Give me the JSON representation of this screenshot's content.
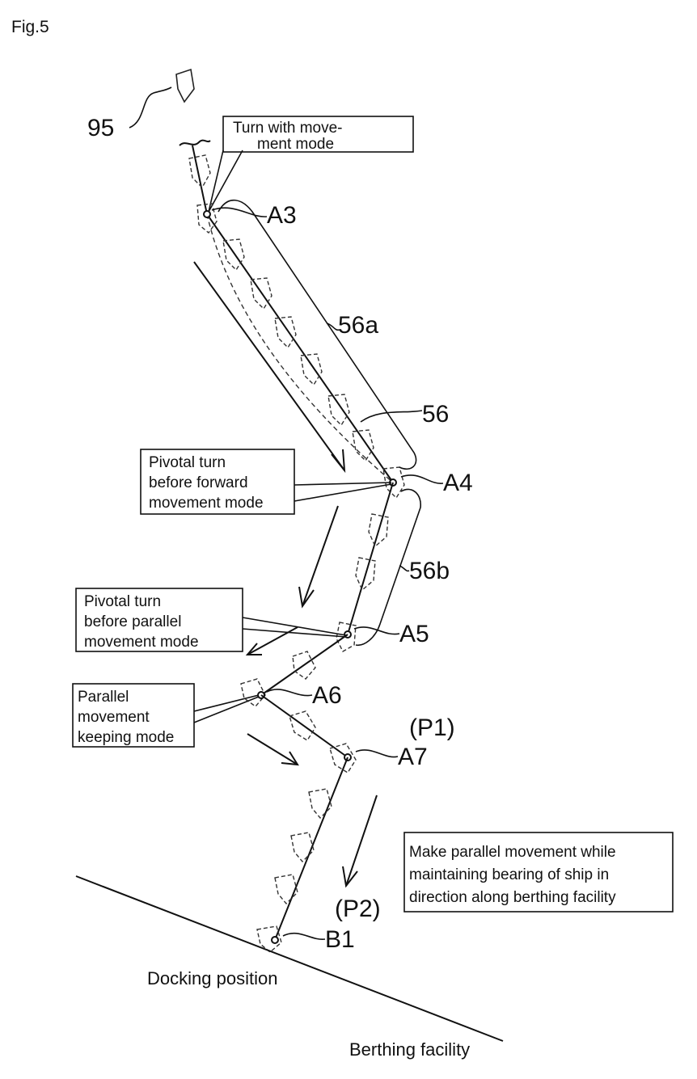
{
  "figure": {
    "title": "Fig.5",
    "labels": {
      "ref_95": "95",
      "ref_56a": "56a",
      "ref_56": "56",
      "ref_56b": "56b",
      "point_A3": "A3",
      "point_A4": "A4",
      "point_A5": "A5",
      "point_A6": "A6",
      "point_A7": "A7",
      "point_B1": "B1",
      "p1": "(P1)",
      "p2": "(P2)",
      "docking_position": "Docking position",
      "berthing_facility": "Berthing facility"
    },
    "boxes": {
      "turn_mode": [
        "Turn with move-",
        "ment mode"
      ],
      "pivotal_forward": [
        "Pivotal turn",
        "before forward",
        "movement mode"
      ],
      "pivotal_parallel": [
        "Pivotal turn",
        "before parallel",
        "movement mode"
      ],
      "parallel_keeping": [
        "Parallel",
        "movement",
        "keeping mode"
      ],
      "parallel_note": [
        "Make parallel movement while",
        "maintaining bearing of ship in",
        "direction along berthing facility"
      ]
    }
  }
}
